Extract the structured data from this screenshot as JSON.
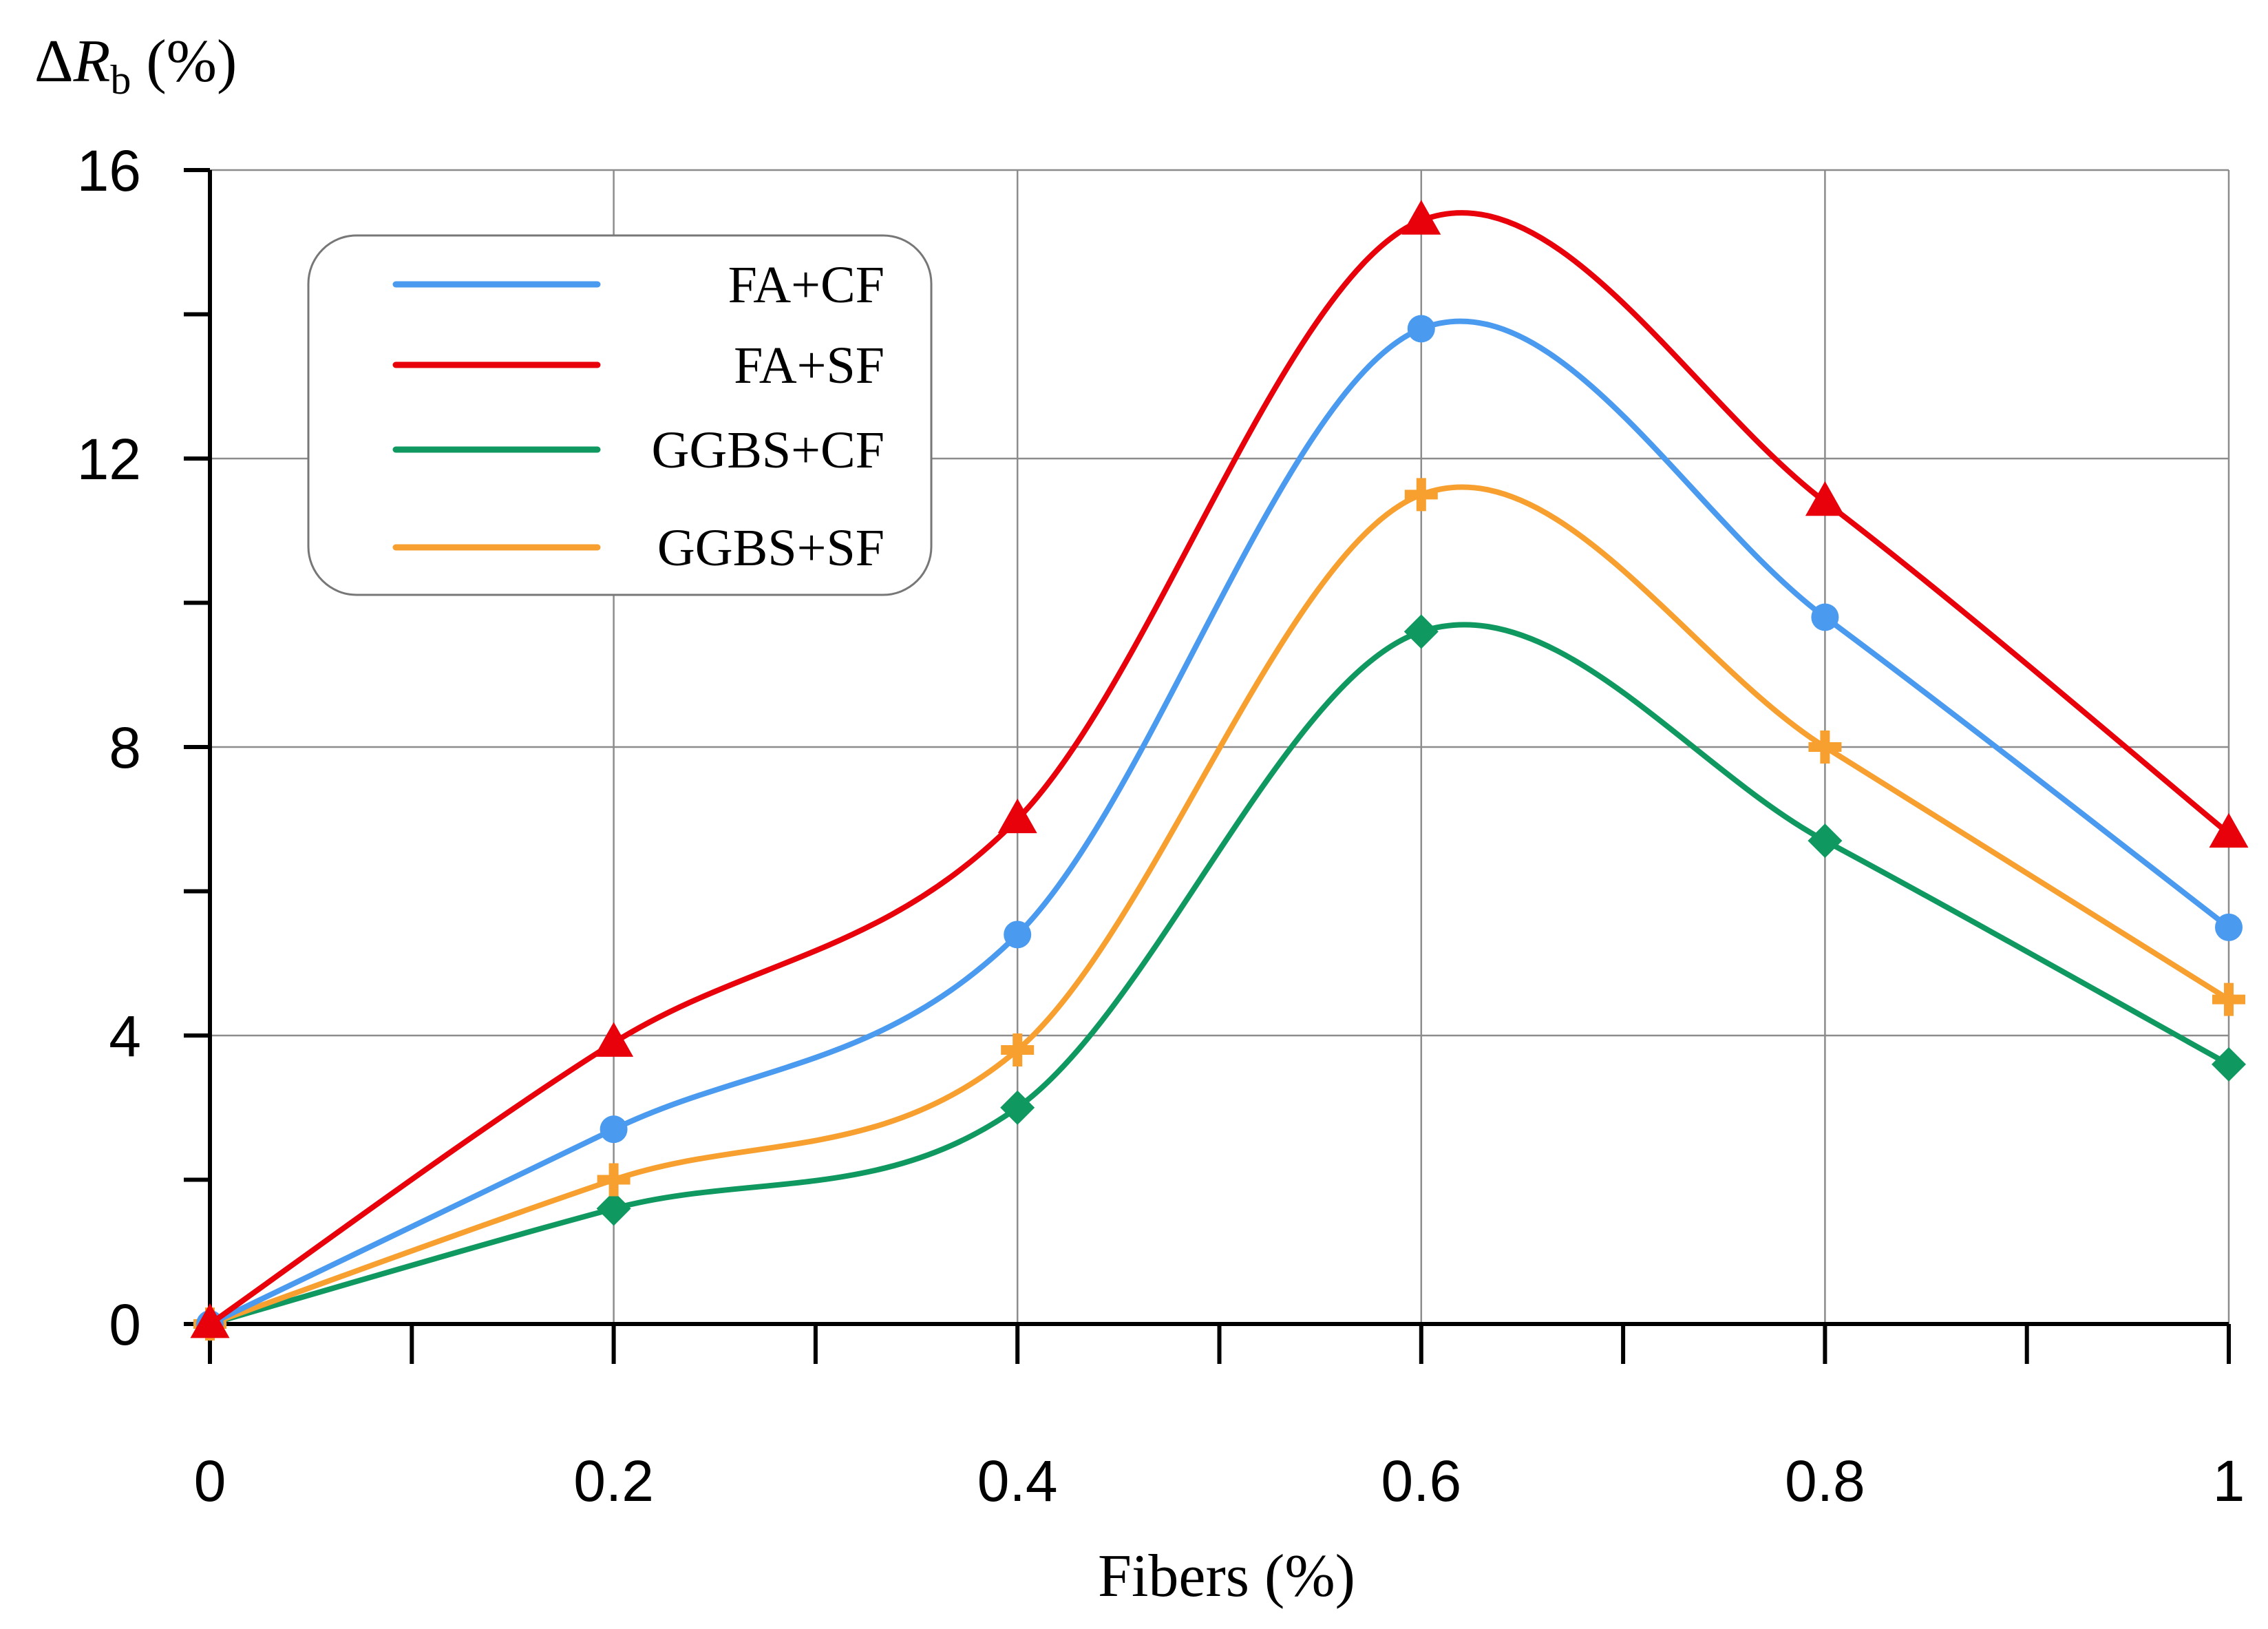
{
  "chart_data": {
    "type": "line",
    "title": "",
    "xlabel": "Fibers (%)",
    "ylabel": {
      "delta": "Δ",
      "symbol": "R",
      "subscript": "b",
      "unit": " (%)"
    },
    "xlim": [
      0,
      1
    ],
    "ylim": [
      0,
      16
    ],
    "xticks": [
      0,
      0.2,
      0.4,
      0.6,
      0.8,
      1
    ],
    "xtick_labels": [
      "0",
      "0.2",
      "0.4",
      "0.6",
      "0.8",
      "1"
    ],
    "yticks": [
      0,
      4,
      8,
      12,
      16
    ],
    "ytick_labels": [
      "0",
      "4",
      "8",
      "12",
      "16"
    ],
    "grid": true,
    "legend_position": "top-left",
    "x": [
      0,
      0.2,
      0.4,
      0.6,
      0.8,
      1
    ],
    "series": [
      {
        "name": "FA+CF",
        "color": "#4a9af0",
        "marker": "circle",
        "values": [
          0,
          2.7,
          5.4,
          13.8,
          9.8,
          5.5
        ]
      },
      {
        "name": "FA+SF",
        "color": "#e8000b",
        "marker": "triangle",
        "values": [
          0,
          3.9,
          7.0,
          15.3,
          11.4,
          6.8
        ]
      },
      {
        "name": "GGBS+CF",
        "color": "#0f9960",
        "marker": "diamond",
        "values": [
          0,
          1.6,
          3.0,
          9.6,
          6.7,
          3.6
        ]
      },
      {
        "name": "GGBS+SF",
        "color": "#f7a030",
        "marker": "plus",
        "values": [
          0,
          2.0,
          3.8,
          11.5,
          8.0,
          4.5
        ]
      }
    ]
  }
}
